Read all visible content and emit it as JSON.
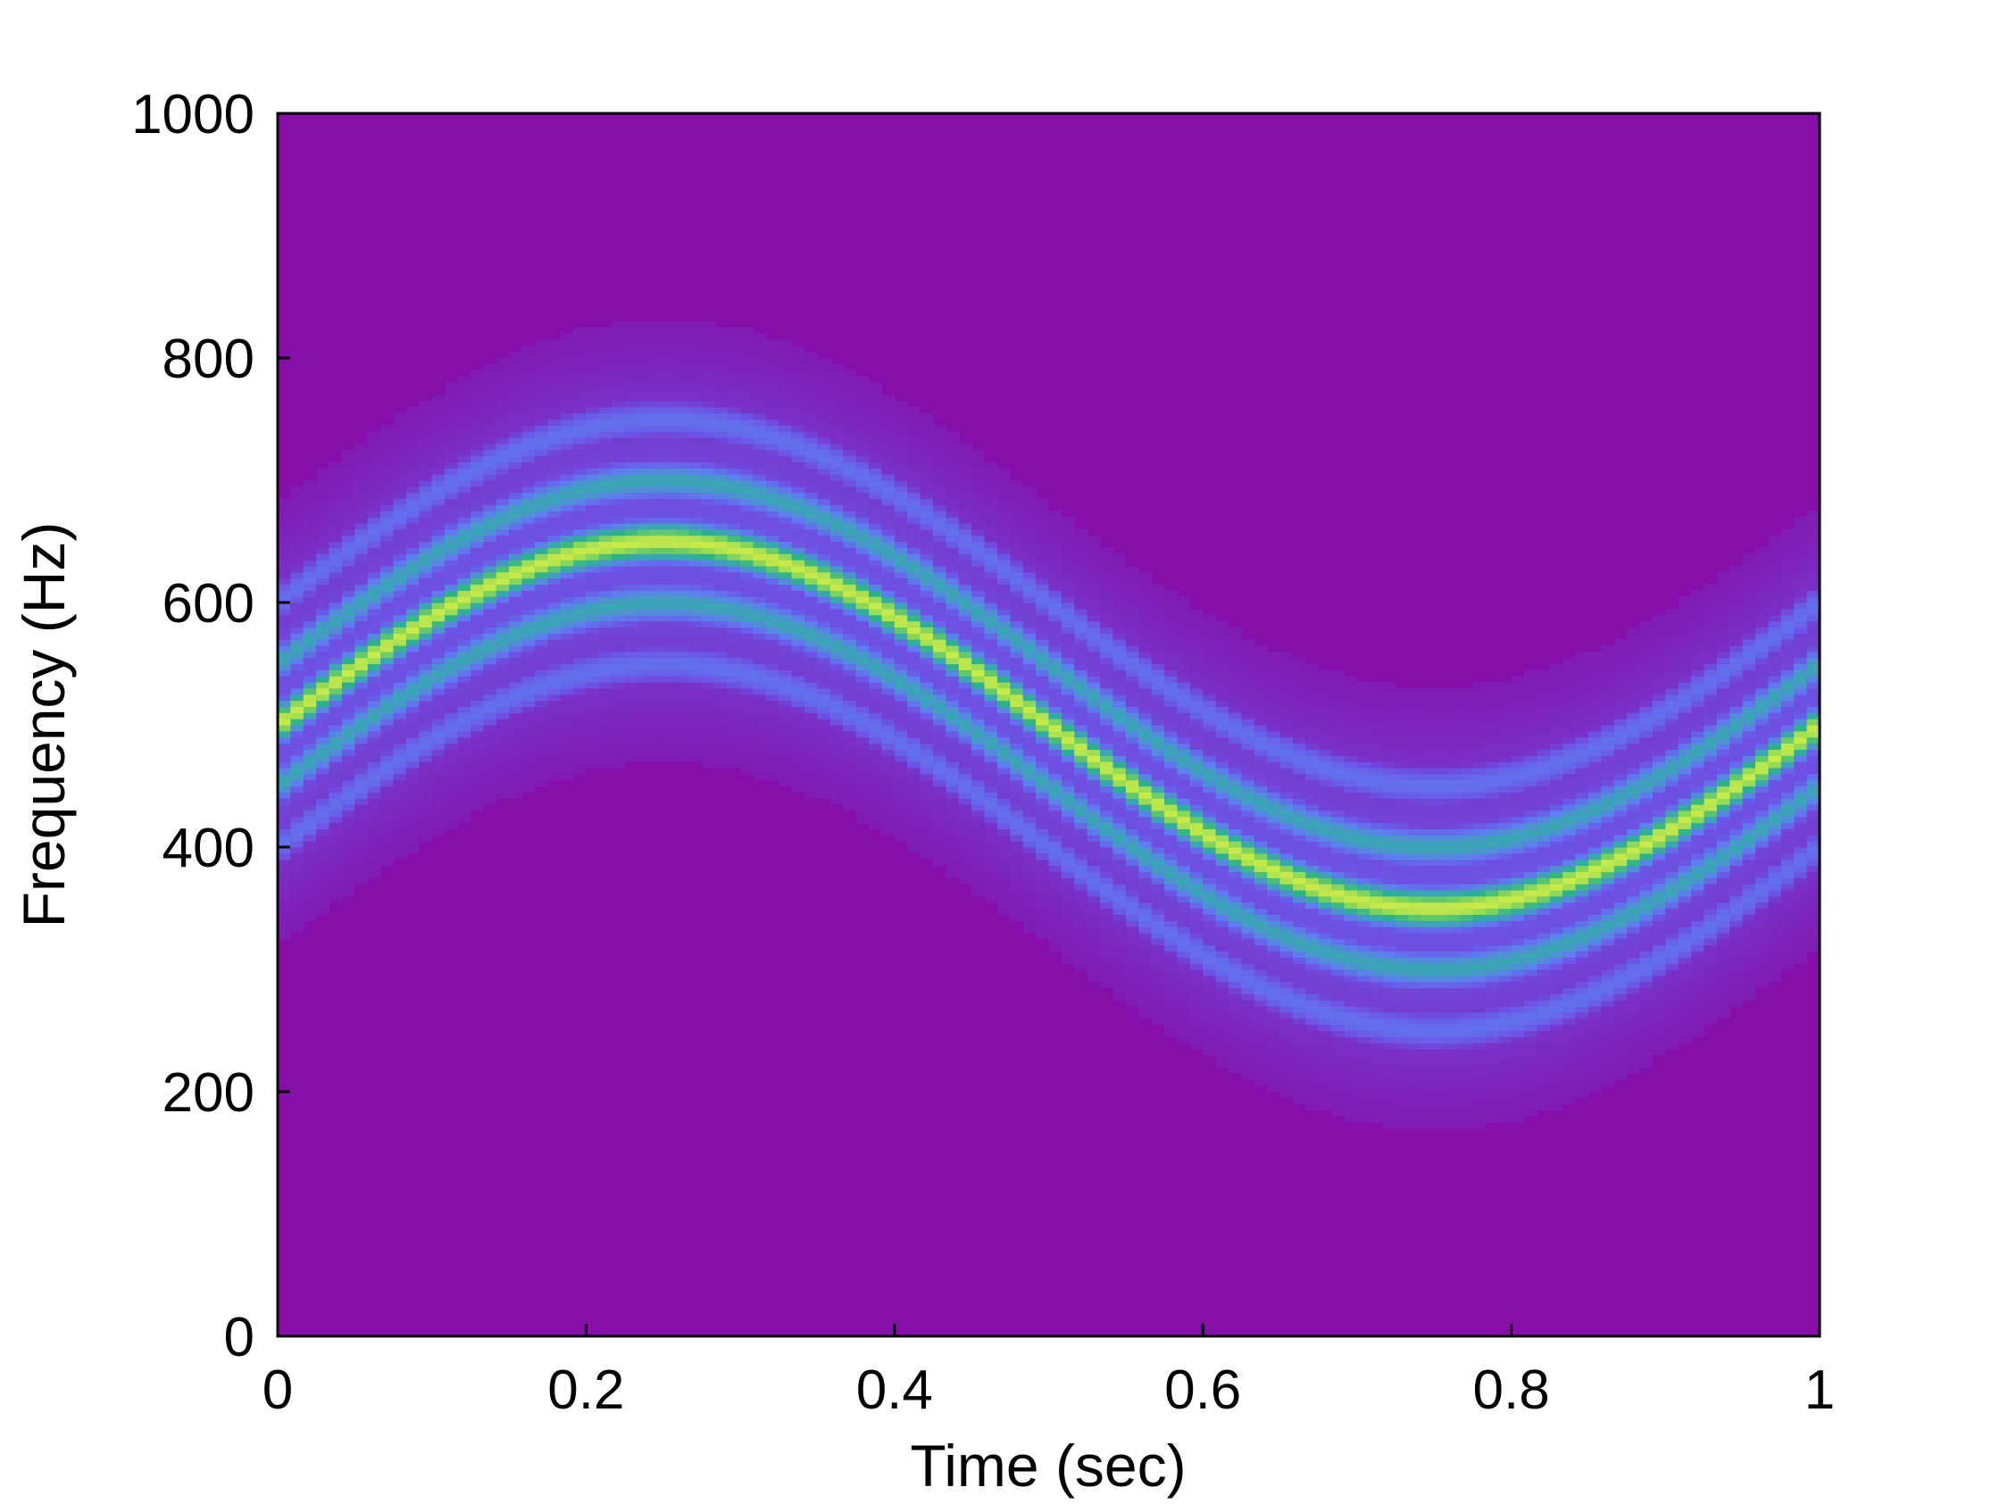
{
  "chart_data": {
    "type": "heatmap",
    "title": "",
    "xlabel": "Time (sec)",
    "ylabel": "Frequency (Hz)",
    "xlim": [
      0,
      1
    ],
    "ylim": [
      0,
      1000
    ],
    "x_ticks": [
      "0",
      "0.2",
      "0.4",
      "0.6",
      "0.8",
      "1"
    ],
    "y_ticks": [
      "0",
      "200",
      "400",
      "600",
      "800",
      "1000"
    ],
    "x_tick_values": [
      0,
      0.2,
      0.4,
      0.6,
      0.8,
      1
    ],
    "y_tick_values": [
      0,
      200,
      400,
      600,
      800,
      1000
    ],
    "grid": false,
    "legend": "none",
    "colormap": [
      "#850fa8",
      "#6c55e6",
      "#5f7df0",
      "#3aa6b4",
      "#2ab28a",
      "#7fd45a",
      "#c8ea4a"
    ],
    "background_color": "#850fa8",
    "description_values": {
      "center_frequency_hz": 500,
      "modulation_amplitude_hz": 150,
      "modulation_frequency_hz": 1,
      "sideband_offsets_hz": [
        -100,
        -50,
        50,
        100
      ],
      "sideband_relative_intensity": [
        0.28,
        0.5,
        0.5,
        0.28
      ],
      "band_width_hz": 30
    }
  }
}
